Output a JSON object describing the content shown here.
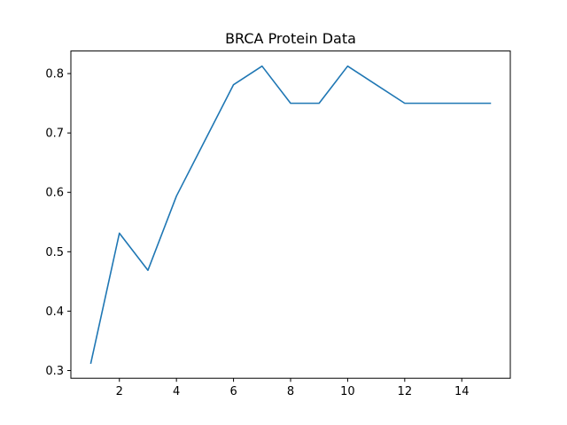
{
  "chart_data": {
    "type": "line",
    "title": "BRCA Protein Data",
    "xlabel": "",
    "ylabel": "",
    "xlim": [
      0.3,
      15.7
    ],
    "ylim": [
      0.287,
      0.838
    ],
    "xticks": [
      2,
      4,
      6,
      8,
      10,
      12,
      14
    ],
    "yticks": [
      0.3,
      0.4,
      0.5,
      0.6,
      0.7,
      0.8
    ],
    "grid": false,
    "series": [
      {
        "color": "#1f77b4",
        "x": [
          1,
          2,
          3,
          4,
          5,
          6,
          7,
          8,
          9,
          10,
          11,
          12,
          13,
          14,
          15
        ],
        "y": [
          0.3125,
          0.53125,
          0.46875,
          0.59375,
          0.6875,
          0.78125,
          0.8125,
          0.75,
          0.75,
          0.8125,
          0.78125,
          0.75,
          0.75,
          0.75,
          0.75
        ]
      }
    ]
  }
}
